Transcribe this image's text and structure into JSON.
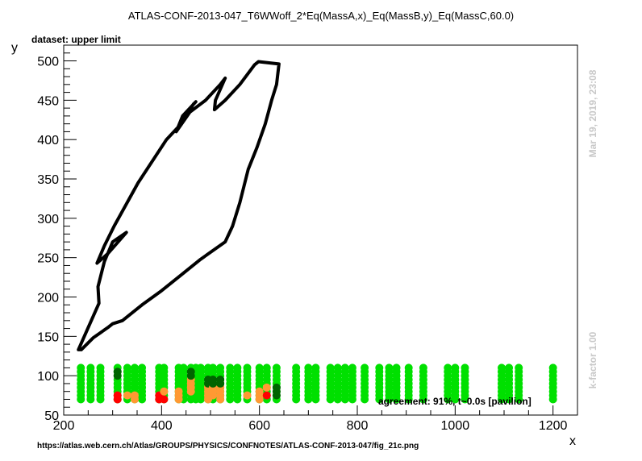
{
  "chart_data": {
    "type": "scatter",
    "title": "ATLAS-CONF-2013-047_T6WWoff_2*Eq(MassA,x)_Eq(MassB,y)_Eq(MassC,60.0)",
    "subtitle": "dataset: upper limit",
    "xlabel": "x",
    "ylabel": "y",
    "xlim": [
      200,
      1250
    ],
    "ylim": [
      50,
      520
    ],
    "xticks": [
      200,
      400,
      600,
      800,
      1000,
      1200
    ],
    "yticks": [
      50,
      100,
      150,
      200,
      250,
      300,
      350,
      400,
      450,
      500
    ],
    "grid": false,
    "contour": {
      "name": "exclusion contour",
      "color": "#000000",
      "points": [
        [
          230,
          133
        ],
        [
          272,
          192
        ],
        [
          270,
          213
        ],
        [
          283,
          245
        ],
        [
          300,
          270
        ],
        [
          328,
          282
        ],
        [
          290,
          255
        ],
        [
          268,
          243
        ],
        [
          283,
          265
        ],
        [
          303,
          290
        ],
        [
          352,
          345
        ],
        [
          410,
          400
        ],
        [
          440,
          420
        ],
        [
          465,
          445
        ],
        [
          470,
          448
        ],
        [
          443,
          430
        ],
        [
          430,
          410
        ],
        [
          458,
          435
        ],
        [
          490,
          450
        ],
        [
          520,
          470
        ],
        [
          530,
          478
        ],
        [
          510,
          450
        ],
        [
          508,
          438
        ],
        [
          530,
          450
        ],
        [
          560,
          470
        ],
        [
          590,
          495
        ],
        [
          598,
          499
        ],
        [
          640,
          496
        ],
        [
          635,
          470
        ],
        [
          625,
          450
        ],
        [
          612,
          420
        ],
        [
          595,
          390
        ],
        [
          577,
          362
        ],
        [
          560,
          320
        ],
        [
          545,
          290
        ],
        [
          530,
          270
        ],
        [
          480,
          248
        ],
        [
          440,
          228
        ],
        [
          400,
          208
        ],
        [
          360,
          190
        ],
        [
          320,
          170
        ],
        [
          300,
          166
        ],
        [
          292,
          162
        ],
        [
          260,
          148
        ],
        [
          236,
          133
        ]
      ]
    },
    "points_colors": {
      "allowed": "#00e000",
      "excluded": "#ff0000",
      "allowed_cons": "#006400",
      "excluded_cons": "#ff9933"
    },
    "point_rows": {
      "green_y": [
        70,
        75,
        80,
        85,
        90,
        95,
        100,
        105,
        110
      ],
      "columns": [
        235,
        255,
        275,
        310,
        330,
        345,
        360,
        395,
        405,
        435,
        445,
        460,
        470,
        480,
        495,
        505,
        520,
        540,
        555,
        575,
        600,
        615,
        635,
        675,
        700,
        715,
        745,
        760,
        775,
        790,
        815,
        845,
        865,
        880,
        905,
        935,
        985,
        1000,
        1020,
        1095,
        1110,
        1130,
        1200
      ],
      "special": [
        {
          "x": 310,
          "kind": "excluded",
          "ys": [
            70,
            75
          ]
        },
        {
          "x": 310,
          "kind": "allowed_cons",
          "ys": [
            100,
            105
          ]
        },
        {
          "x": 330,
          "kind": "excluded_cons",
          "ys": [
            75
          ]
        },
        {
          "x": 345,
          "kind": "excluded_cons",
          "ys": [
            70,
            75
          ]
        },
        {
          "x": 395,
          "kind": "excluded",
          "ys": [
            70,
            75
          ]
        },
        {
          "x": 405,
          "kind": "excluded",
          "ys": [
            70
          ]
        },
        {
          "x": 405,
          "kind": "excluded_cons",
          "ys": [
            80
          ]
        },
        {
          "x": 435,
          "kind": "excluded_cons",
          "ys": [
            70,
            75,
            80
          ]
        },
        {
          "x": 460,
          "kind": "excluded_cons",
          "ys": [
            80,
            85,
            90,
            95
          ]
        },
        {
          "x": 460,
          "kind": "allowed_cons",
          "ys": [
            100,
            105
          ]
        },
        {
          "x": 495,
          "kind": "excluded_cons",
          "ys": [
            70,
            75,
            80,
            85
          ]
        },
        {
          "x": 495,
          "kind": "allowed_cons",
          "ys": [
            90,
            95
          ]
        },
        {
          "x": 505,
          "kind": "excluded_cons",
          "ys": [
            75,
            80,
            85
          ]
        },
        {
          "x": 505,
          "kind": "allowed_cons",
          "ys": [
            90,
            95
          ]
        },
        {
          "x": 520,
          "kind": "excluded_cons",
          "ys": [
            70,
            75,
            80,
            85
          ]
        },
        {
          "x": 520,
          "kind": "allowed_cons",
          "ys": [
            90,
            95
          ]
        },
        {
          "x": 575,
          "kind": "excluded_cons",
          "ys": [
            75
          ]
        },
        {
          "x": 600,
          "kind": "excluded_cons",
          "ys": [
            70,
            75,
            80
          ]
        },
        {
          "x": 615,
          "kind": "excluded",
          "ys": [
            75
          ]
        },
        {
          "x": 615,
          "kind": "excluded_cons",
          "ys": [
            85
          ]
        },
        {
          "x": 635,
          "kind": "allowed_cons",
          "ys": [
            75,
            80,
            85
          ]
        }
      ]
    }
  },
  "annotations": {
    "agreement": "agreement: 91%, t~0.0s [pavilion]",
    "url": "https://atlas.web.cern.ch/Atlas/GROUPS/PHYSICS/CONFNOTES/ATLAS-CONF-2013-047/fig_21c.png",
    "timestamp": "Mar 19, 2019, 23:08",
    "kfactor": "k-factor 1.00"
  }
}
